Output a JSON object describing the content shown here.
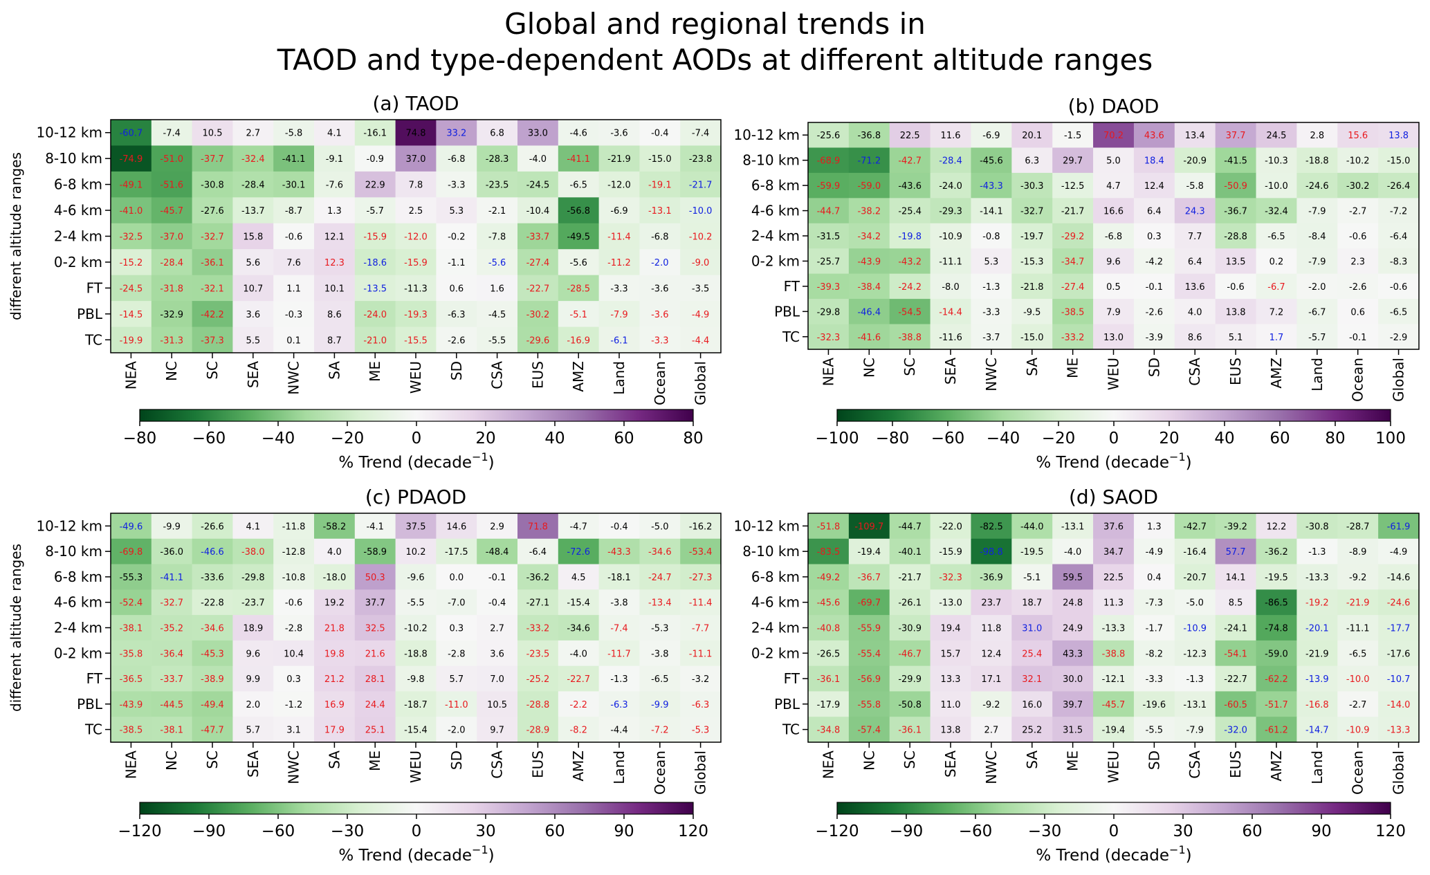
{
  "title_line1": "Global and regional trends in",
  "title_line2": "TAOD and type-dependent AODs at different altitude ranges",
  "colormap": {
    "name": "PRGn_r",
    "stops": [
      "#00441b",
      "#1b7837",
      "#5aae61",
      "#a6dba0",
      "#d9f0d3",
      "#f7f7f7",
      "#e7d4e8",
      "#c2a5cf",
      "#9970ab",
      "#762a83",
      "#40004b"
    ]
  },
  "text_colors": {
    "red": "#e8191e",
    "blue": "#1020e0",
    "black": "#000000"
  },
  "chart_data": [
    {
      "type": "heatmap",
      "title": "(a) TAOD",
      "ylabel": "different altitude ranges",
      "rows": [
        "10-12 km",
        "8-10 km",
        "6-8 km",
        "4-6 km",
        "2-4 km",
        "0-2 km",
        "FT",
        "PBL",
        "TC"
      ],
      "columns": [
        "NEA",
        "NC",
        "SC",
        "SEA",
        "NWC",
        "SA",
        "ME",
        "WEU",
        "SD",
        "CSA",
        "EUS",
        "AMZ",
        "Land",
        "Ocean",
        "Global"
      ],
      "values": [
        [
          -60.7,
          -7.4,
          10.5,
          2.7,
          -5.8,
          4.1,
          -16.1,
          74.8,
          33.2,
          6.8,
          33.0,
          -4.6,
          -3.6,
          -0.4,
          -7.4
        ],
        [
          -74.9,
          -51.0,
          -37.7,
          -32.4,
          -41.1,
          -9.1,
          -0.9,
          37.0,
          -6.8,
          -28.3,
          -4.0,
          -41.1,
          -21.9,
          -15.0,
          -23.8
        ],
        [
          -49.1,
          -51.6,
          -30.8,
          -28.4,
          -30.1,
          -7.6,
          22.9,
          7.8,
          -3.3,
          -23.5,
          -24.5,
          -6.5,
          -12.0,
          -19.1,
          -21.7
        ],
        [
          -41.0,
          -45.7,
          -27.6,
          -13.7,
          -8.7,
          1.3,
          -5.7,
          2.5,
          5.3,
          -2.1,
          -10.4,
          -56.8,
          -6.9,
          -13.1,
          -10.0
        ],
        [
          -32.5,
          -37.0,
          -32.7,
          15.8,
          -0.6,
          12.1,
          -15.9,
          -12.0,
          -0.2,
          -7.8,
          -33.7,
          -49.5,
          -11.4,
          -6.8,
          -10.2
        ],
        [
          -15.2,
          -28.4,
          -36.1,
          5.6,
          7.6,
          12.3,
          -18.6,
          -15.9,
          -1.1,
          -5.6,
          -27.4,
          -5.6,
          -11.2,
          -2.0,
          -9.0
        ],
        [
          -24.5,
          -31.8,
          -32.1,
          10.7,
          1.1,
          10.1,
          -13.5,
          -11.3,
          0.6,
          1.6,
          -22.7,
          -28.5,
          -3.3,
          -3.6,
          -3.5
        ],
        [
          -14.5,
          -32.9,
          -42.2,
          3.6,
          -0.3,
          8.6,
          -24.0,
          -19.3,
          -6.3,
          -4.5,
          -30.2,
          -5.1,
          -7.9,
          -3.6,
          -4.9
        ],
        [
          -19.9,
          -31.3,
          -37.3,
          5.5,
          0.1,
          8.7,
          -21.0,
          -15.5,
          -2.6,
          -5.5,
          -29.6,
          -16.9,
          -6.1,
          -3.3,
          -4.4
        ]
      ],
      "text_color_codes": [
        "bkkkkkkkbkkkkkk",
        "rrrrkkkkkkkrkkk",
        "rrkkkkkkkkkkkrb",
        "rrkkkkkkkkkkkrb",
        "rrrkkkrrkkrkrkr",
        "rrrkkrbrkbrkrbr",
        "rrrkkkbkkkrrkkk",
        "rkrkkkrrkkrrrrr",
        "rrrkkkrrkkrrbrr"
      ],
      "colorbar": {
        "vmin": -80,
        "vmax": 80,
        "ticks": [
          -80,
          -60,
          -40,
          -20,
          0,
          20,
          40,
          60,
          80
        ],
        "label": "% Trend (decade",
        "label_sup": "−1",
        "label_end": ")"
      }
    },
    {
      "type": "heatmap",
      "title": "(b) DAOD",
      "ylabel": "",
      "rows": [
        "10-12 km",
        "8-10 km",
        "6-8 km",
        "4-6 km",
        "2-4 km",
        "0-2 km",
        "FT",
        "PBL",
        "TC"
      ],
      "columns": [
        "NEA",
        "NC",
        "SC",
        "SEA",
        "NWC",
        "SA",
        "ME",
        "WEU",
        "SD",
        "CSA",
        "EUS",
        "AMZ",
        "Land",
        "Ocean",
        "Global"
      ],
      "values": [
        [
          -25.6,
          -36.8,
          22.5,
          11.6,
          -6.9,
          20.1,
          -1.5,
          70.2,
          43.6,
          13.4,
          37.7,
          24.5,
          2.8,
          15.6,
          13.8
        ],
        [
          -68.9,
          -71.2,
          -42.7,
          -28.4,
          -45.6,
          6.3,
          29.7,
          5.0,
          18.4,
          -20.9,
          -41.5,
          -10.3,
          -18.8,
          -10.2,
          -15.0
        ],
        [
          -59.9,
          -59.0,
          -43.6,
          -24.0,
          -43.3,
          -30.3,
          -12.5,
          4.7,
          12.4,
          -5.8,
          -50.9,
          -10.0,
          -24.6,
          -30.2,
          -26.4
        ],
        [
          -44.7,
          -38.2,
          -25.4,
          -29.3,
          -14.1,
          -32.7,
          -21.7,
          16.6,
          6.4,
          24.3,
          -36.7,
          -32.4,
          -7.9,
          -2.7,
          -7.2
        ],
        [
          -31.5,
          -34.2,
          -19.8,
          -10.9,
          -0.8,
          -19.7,
          -29.2,
          -6.8,
          0.3,
          7.7,
          -28.8,
          -6.5,
          -8.4,
          -0.6,
          -6.4
        ],
        [
          -25.7,
          -43.9,
          -43.2,
          -11.1,
          5.3,
          -15.3,
          -34.7,
          9.6,
          -4.2,
          6.4,
          13.5,
          0.2,
          -7.9,
          2.3,
          -8.3
        ],
        [
          -39.3,
          -38.4,
          -24.2,
          -8.0,
          -1.3,
          -21.8,
          -27.4,
          0.5,
          -0.1,
          13.6,
          -0.6,
          -6.7,
          -2.0,
          -2.6,
          -0.6
        ],
        [
          -29.8,
          -46.4,
          -54.5,
          -14.4,
          -3.3,
          -9.5,
          -38.5,
          7.9,
          -2.6,
          4.0,
          13.8,
          7.2,
          -6.7,
          0.6,
          -6.5
        ],
        [
          -32.3,
          -41.6,
          -38.8,
          -11.6,
          -3.7,
          -15.0,
          -33.2,
          13.0,
          -3.9,
          8.6,
          5.1,
          1.7,
          -5.7,
          -0.1,
          -2.9
        ]
      ],
      "text_color_codes": [
        "kkkkkkkrrkrkkrb",
        "rbrbkkkkbkkkkkk",
        "rrkkbkkkkkrkkkk",
        "rrkkkkkkkbkkkkk",
        "krbkkkrkkkkkkkk",
        "krrkkkrkkkkkkkk",
        "rrrkkkrkkkkrkkk",
        "kbrrkkrkkkkkkkk",
        "rrrkkkrkkkkbkkk"
      ],
      "colorbar": {
        "vmin": -100,
        "vmax": 100,
        "ticks": [
          -100,
          -80,
          -60,
          -40,
          -20,
          0,
          20,
          40,
          60,
          80,
          100
        ],
        "label": "% Trend (decade",
        "label_sup": "−1",
        "label_end": ")"
      }
    },
    {
      "type": "heatmap",
      "title": "(c) PDAOD",
      "ylabel": "different altitude ranges",
      "rows": [
        "10-12 km",
        "8-10 km",
        "6-8 km",
        "4-6 km",
        "2-4 km",
        "0-2 km",
        "FT",
        "PBL",
        "TC"
      ],
      "columns": [
        "NEA",
        "NC",
        "SC",
        "SEA",
        "NWC",
        "SA",
        "ME",
        "WEU",
        "SD",
        "CSA",
        "EUS",
        "AMZ",
        "Land",
        "Ocean",
        "Global"
      ],
      "values": [
        [
          -49.6,
          -9.9,
          -26.6,
          4.1,
          -11.8,
          -58.2,
          -4.1,
          37.5,
          14.6,
          2.9,
          71.8,
          -4.7,
          -0.4,
          -5.0,
          -16.2
        ],
        [
          -69.8,
          -36.0,
          -46.6,
          -38.0,
          -12.8,
          4.0,
          -58.9,
          10.2,
          -17.5,
          -48.4,
          -6.4,
          -72.6,
          -43.3,
          -34.6,
          -53.4
        ],
        [
          -55.3,
          -41.1,
          -33.6,
          -29.8,
          -10.8,
          -18.0,
          50.3,
          -9.6,
          0.0,
          -0.1,
          -36.2,
          4.5,
          -18.1,
          -24.7,
          -27.3
        ],
        [
          -52.4,
          -32.7,
          -22.8,
          -23.7,
          -0.6,
          19.2,
          37.7,
          -5.5,
          -7.0,
          -0.4,
          -27.1,
          -15.4,
          -3.8,
          -13.4,
          -11.4
        ],
        [
          -38.1,
          -35.2,
          -34.6,
          18.9,
          -2.8,
          21.8,
          32.5,
          -10.2,
          0.3,
          2.7,
          -33.2,
          -34.6,
          -7.4,
          -5.3,
          -7.7
        ],
        [
          -35.8,
          -36.4,
          -45.3,
          9.6,
          10.4,
          19.8,
          21.6,
          -18.8,
          -2.8,
          3.6,
          -23.5,
          -4.0,
          -11.7,
          -3.8,
          -11.1
        ],
        [
          -36.5,
          -33.7,
          -38.9,
          9.9,
          0.3,
          21.2,
          28.1,
          -9.8,
          5.7,
          7.0,
          -25.2,
          -22.7,
          -1.3,
          -6.5,
          -3.2
        ],
        [
          -43.9,
          -44.5,
          -49.4,
          2.0,
          -1.2,
          16.9,
          24.4,
          -18.7,
          -11.0,
          10.5,
          -28.8,
          -2.2,
          -6.3,
          -9.9,
          -6.3
        ],
        [
          -38.5,
          -38.1,
          -47.7,
          5.7,
          3.1,
          17.9,
          25.1,
          -15.4,
          -2.0,
          9.7,
          -28.9,
          -8.2,
          -4.4,
          -7.2,
          -5.3
        ]
      ],
      "text_color_codes": [
        "bkkkkkkkkkrkkkk",
        "rkbrkkkkkkkbrrr",
        "kbkkkkrkkkkkkrr",
        "rrkkkkkkkkkkkrr",
        "rrrkkrrkkkrkrkr",
        "rrrkkrrkkkrkrkr",
        "rrrkkrrkkkrrkkk",
        "rrrkkrrkrkrrbbr",
        "rrrkkrrkkkrrkrr"
      ],
      "colorbar": {
        "vmin": -120,
        "vmax": 120,
        "ticks": [
          -120,
          -90,
          -60,
          -30,
          0,
          30,
          60,
          90,
          120
        ],
        "label": "% Trend (decade",
        "label_sup": "−1",
        "label_end": ")"
      }
    },
    {
      "type": "heatmap",
      "title": "(d) SAOD",
      "ylabel": "",
      "rows": [
        "10-12 km",
        "8-10 km",
        "6-8 km",
        "4-6 km",
        "2-4 km",
        "0-2 km",
        "FT",
        "PBL",
        "TC"
      ],
      "columns": [
        "NEA",
        "NC",
        "SC",
        "SEA",
        "NWC",
        "SA",
        "ME",
        "WEU",
        "SD",
        "CSA",
        "EUS",
        "AMZ",
        "Land",
        "Ocean",
        "Global"
      ],
      "values": [
        [
          -51.8,
          -109.7,
          -44.7,
          -22.0,
          -82.5,
          -44.0,
          -13.1,
          37.6,
          1.3,
          -42.7,
          -39.2,
          12.2,
          -30.8,
          -28.7,
          -61.9
        ],
        [
          -83.5,
          -19.4,
          -40.1,
          -15.9,
          -98.8,
          -19.5,
          -4.0,
          34.7,
          -4.9,
          -16.4,
          57.7,
          -36.2,
          -1.3,
          -8.9,
          -4.9
        ],
        [
          -49.2,
          -36.7,
          -21.7,
          -32.3,
          -36.9,
          -5.1,
          59.5,
          22.5,
          0.4,
          -20.7,
          14.1,
          -19.5,
          -13.3,
          -9.2,
          -14.6
        ],
        [
          -45.6,
          -69.7,
          -26.1,
          -13.0,
          23.7,
          18.7,
          24.8,
          11.3,
          -7.3,
          -5.0,
          8.5,
          -86.5,
          -19.2,
          -21.9,
          -24.6
        ],
        [
          -40.8,
          -55.9,
          -30.9,
          19.4,
          11.8,
          31.0,
          24.9,
          -13.3,
          -1.7,
          -10.9,
          -24.1,
          -74.8,
          -20.1,
          -11.1,
          -17.7
        ],
        [
          -26.5,
          -55.4,
          -46.7,
          15.7,
          12.4,
          25.4,
          43.3,
          -38.8,
          -8.2,
          -12.3,
          -54.1,
          -59.0,
          -21.9,
          -6.5,
          -17.6
        ],
        [
          -36.1,
          -56.9,
          -29.9,
          13.3,
          17.1,
          32.1,
          30.0,
          -12.1,
          -3.3,
          -1.3,
          -22.7,
          -62.2,
          -13.9,
          -10.0,
          -10.7
        ],
        [
          -17.9,
          -55.8,
          -50.8,
          11.0,
          -9.2,
          16.0,
          39.7,
          -45.7,
          -19.6,
          -13.1,
          -60.5,
          -51.7,
          -16.8,
          -2.7,
          -14.0
        ],
        [
          -34.8,
          -57.4,
          -36.1,
          13.8,
          2.7,
          25.2,
          31.5,
          -19.4,
          -5.5,
          -7.9,
          -32.0,
          -61.2,
          -14.7,
          -10.9,
          -13.3
        ]
      ],
      "text_color_codes": [
        "rrkkkkkkkkkkkkb",
        "rkkkbkkkkkbkkkk",
        "rrkrkkkkkkkkkkk",
        "rrkkkkkkkkkkrrr",
        "rrkkkbkkkbkkbkb",
        "krrkkrkrkkrkkkk",
        "rrkkkrkkkkkrbrb",
        "krkkkkkrkkrrrkr",
        "rrrkkkkkkkbrbrr"
      ],
      "colorbar": {
        "vmin": -120,
        "vmax": 120,
        "ticks": [
          -120,
          -90,
          -60,
          -30,
          0,
          30,
          60,
          90,
          120
        ],
        "label": "% Trend (decade",
        "label_sup": "−1",
        "label_end": ")"
      }
    }
  ]
}
